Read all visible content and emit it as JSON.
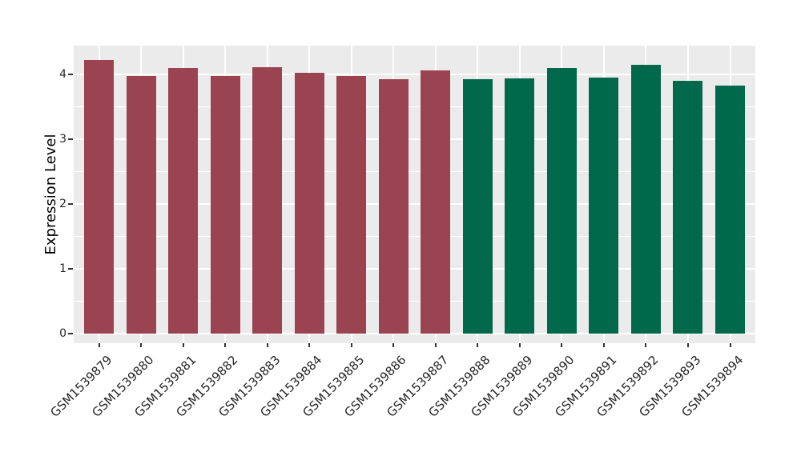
{
  "chart_data": {
    "type": "bar",
    "title": "",
    "xlabel": "",
    "ylabel": "Expression Level",
    "categories": [
      "GSM1539879",
      "GSM1539880",
      "GSM1539881",
      "GSM1539882",
      "GSM1539883",
      "GSM1539884",
      "GSM1539885",
      "GSM1539886",
      "GSM1539887",
      "GSM1539888",
      "GSM1539889",
      "GSM1539890",
      "GSM1539891",
      "GSM1539892",
      "GSM1539893",
      "GSM1539894"
    ],
    "values": [
      4.22,
      3.98,
      4.1,
      3.98,
      4.11,
      4.02,
      3.98,
      3.92,
      4.06,
      3.92,
      3.94,
      4.1,
      3.95,
      4.15,
      3.9,
      3.83
    ],
    "bar_colors": [
      "#9A4452",
      "#9A4452",
      "#9A4452",
      "#9A4452",
      "#9A4452",
      "#9A4452",
      "#9A4452",
      "#9A4452",
      "#9A4452",
      "#00694B",
      "#00694B",
      "#00694B",
      "#00694B",
      "#00694B",
      "#00694B",
      "#00694B"
    ],
    "group_colors": {
      "first_group": "#9A4452",
      "second_group": "#00694B"
    },
    "ylim": [
      -0.15,
      4.44
    ],
    "yticks": [
      0,
      1,
      2,
      3,
      4
    ],
    "yticklabels": [
      "0",
      "1",
      "2",
      "3",
      "4"
    ],
    "yticks_minor": [
      0.5,
      1.5,
      2.5,
      3.5
    ],
    "grid": "on",
    "legend": "none",
    "panel_bg": "#EBEBEB",
    "grid_color": "#FFFFFF",
    "tick_color": "#333333",
    "x_tick_rotation_deg": 45
  }
}
